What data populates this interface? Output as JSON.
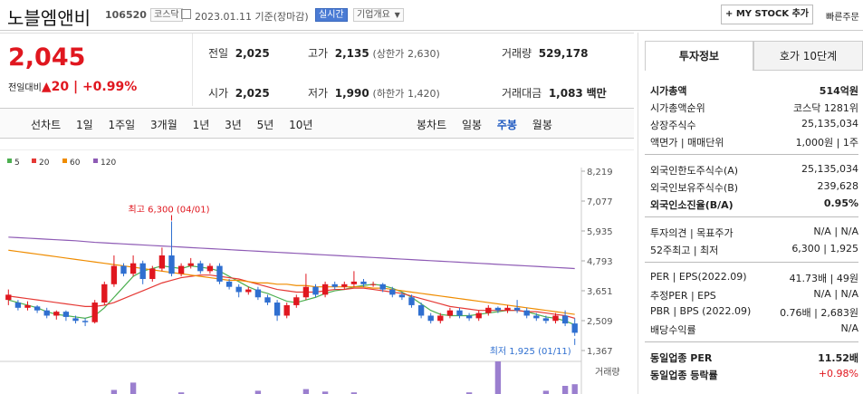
{
  "header": {
    "name": "노블엠앤비",
    "code": "106520",
    "market": "코스닥",
    "date": "2023.01.11 기준(장마감)",
    "realtime": "실시간",
    "company_overview": "기업개요",
    "mystock": "MY STOCK 추가",
    "quick_order": "빠른주문"
  },
  "quote": {
    "price": "2,045",
    "change_label": "전일대비",
    "change": "20",
    "change_pct": "+0.99%",
    "prev_label": "전일",
    "prev": "2,025",
    "high_label": "고가",
    "high": "2,135",
    "upper_label": "(상한가",
    "upper": "2,630)",
    "volume_label": "거래량",
    "volume": "529,178",
    "open_label": "시가",
    "open": "2,025",
    "low_label": "저가",
    "low": "1,990",
    "lower_label": "(하한가",
    "lower": "1,420)",
    "amount_label": "거래대금",
    "amount": "1,083",
    "amount_unit": "백만"
  },
  "periods": {
    "label": "선차트",
    "items": [
      "1일",
      "1주일",
      "3개월",
      "1년",
      "3년",
      "5년",
      "10년"
    ]
  },
  "candle_types": {
    "label": "봉차트",
    "items": [
      "일봉",
      "주봉",
      "월봉"
    ],
    "selected": "주봉"
  },
  "tabs": {
    "invest": "투자정보",
    "hoga": "호가 10단계"
  },
  "info": {
    "rows1": [
      [
        "시가총액",
        "514억원"
      ],
      [
        "시가총액순위",
        "코스닥 1281위"
      ],
      [
        "상장주식수",
        "25,135,034"
      ],
      [
        "액면가 | 매매단위",
        "1,000원 | 1주"
      ]
    ],
    "rows2": [
      [
        "외국인한도주식수(A)",
        "25,135,034"
      ],
      [
        "외국인보유주식수(B)",
        "239,628"
      ],
      [
        "외국인소진율(B/A)",
        "0.95%"
      ]
    ],
    "rows3": [
      [
        "투자의견 | 목표주가",
        "N/A | N/A"
      ],
      [
        "52주최고 | 최저",
        "6,300 | 1,925"
      ]
    ],
    "rows4": [
      [
        "PER | EPS(2022.09)",
        "41.73배 | 49원"
      ],
      [
        "추정PER | EPS",
        "N/A | N/A"
      ],
      [
        "PBR | BPS (2022.09)",
        "0.76배 | 2,683원"
      ],
      [
        "배당수익률",
        "N/A"
      ]
    ],
    "rows5": [
      [
        "동일업종 PER",
        "11.52배"
      ],
      [
        "동일업종 등락률",
        "+0.98%"
      ]
    ]
  },
  "chart_data": {
    "type": "candlestick",
    "legend": [
      {
        "name": "5",
        "color": "#4caf50"
      },
      {
        "name": "20",
        "color": "#e53935"
      },
      {
        "name": "60",
        "color": "#ef8c00"
      },
      {
        "name": "120",
        "color": "#8e5bb5"
      }
    ],
    "yticks": [
      "8,219",
      "7,077",
      "5,935",
      "4,793",
      "3,651",
      "2,509",
      "1,367"
    ],
    "ylim": [
      1367,
      8219
    ],
    "max_label": "최고 6,300 (04/01)",
    "min_label": "최저 1,925 (01/11)",
    "volume_label": "거래량",
    "candles": [
      [
        3300,
        3500,
        3700,
        3100
      ],
      [
        3200,
        3000,
        3300,
        2900
      ],
      [
        3000,
        3100,
        3250,
        2900
      ],
      [
        3050,
        2900,
        3100,
        2800
      ],
      [
        2900,
        2700,
        3000,
        2600
      ],
      [
        2700,
        2850,
        2900,
        2550
      ],
      [
        2850,
        2650,
        2900,
        2500
      ],
      [
        2600,
        2500,
        2700,
        2400
      ],
      [
        2500,
        2450,
        2600,
        2300
      ],
      [
        2450,
        3200,
        3300,
        2400
      ],
      [
        3200,
        3900,
        4000,
        3100
      ],
      [
        3900,
        4600,
        5000,
        3800
      ],
      [
        4600,
        4300,
        4700,
        4200
      ],
      [
        4300,
        4700,
        5000,
        4200
      ],
      [
        4700,
        4100,
        4800,
        3900
      ],
      [
        4100,
        4500,
        4600,
        4000
      ],
      [
        4500,
        5000,
        5300,
        4400
      ],
      [
        5000,
        4300,
        6300,
        4200
      ],
      [
        4300,
        4600,
        4700,
        4200
      ],
      [
        4600,
        4700,
        4900,
        4500
      ],
      [
        4700,
        4400,
        4800,
        4300
      ],
      [
        4400,
        4600,
        4700,
        4300
      ],
      [
        4600,
        4000,
        4700,
        3900
      ],
      [
        4000,
        3800,
        4100,
        3700
      ],
      [
        3800,
        3600,
        3900,
        3400
      ],
      [
        3600,
        3700,
        3800,
        3500
      ],
      [
        3700,
        3400,
        3800,
        3300
      ],
      [
        3400,
        3200,
        3500,
        3100
      ],
      [
        3200,
        2700,
        3300,
        2500
      ],
      [
        2700,
        3100,
        3200,
        2600
      ],
      [
        3100,
        3400,
        3500,
        3000
      ],
      [
        3400,
        3800,
        4300,
        3300
      ],
      [
        3800,
        3500,
        3900,
        3400
      ],
      [
        3500,
        3900,
        4000,
        3400
      ],
      [
        3900,
        3800,
        4000,
        3700
      ],
      [
        3800,
        3900,
        4000,
        3700
      ],
      [
        3900,
        4000,
        4400,
        3800
      ],
      [
        4000,
        3900,
        4100,
        3800
      ],
      [
        3900,
        3900,
        4000,
        3800
      ],
      [
        3900,
        3700,
        3950,
        3600
      ],
      [
        3700,
        3500,
        3800,
        3400
      ],
      [
        3500,
        3400,
        3600,
        3300
      ],
      [
        3400,
        3100,
        3500,
        3000
      ],
      [
        3100,
        2700,
        3200,
        2600
      ],
      [
        2700,
        2500,
        2800,
        2400
      ],
      [
        2500,
        2700,
        2800,
        2400
      ],
      [
        2700,
        2900,
        3000,
        2600
      ],
      [
        2900,
        2700,
        3000,
        2600
      ],
      [
        2700,
        2600,
        2800,
        2500
      ],
      [
        2600,
        2800,
        2900,
        2500
      ],
      [
        2800,
        3000,
        3100,
        2700
      ],
      [
        3000,
        2900,
        3050,
        2800
      ],
      [
        2900,
        3000,
        3100,
        2800
      ],
      [
        3000,
        2900,
        3300,
        2800
      ],
      [
        2900,
        2700,
        3000,
        2600
      ],
      [
        2700,
        2600,
        2800,
        2500
      ],
      [
        2600,
        2500,
        2700,
        2400
      ],
      [
        2500,
        2700,
        2800,
        2400
      ],
      [
        2700,
        2400,
        2900,
        2300
      ],
      [
        2400,
        2045,
        2600,
        1925
      ]
    ],
    "ma": {
      "5": [
        3300,
        3200,
        3100,
        3000,
        2850,
        2750,
        2700,
        2650,
        2600,
        2700,
        3000,
        3400,
        3800,
        4200,
        4400,
        4500,
        4600,
        4550,
        4500,
        4600,
        4550,
        4500,
        4400,
        4200,
        4000,
        3800,
        3650,
        3550,
        3400,
        3250,
        3200,
        3300,
        3400,
        3550,
        3650,
        3700,
        3800,
        3850,
        3900,
        3850,
        3750,
        3600,
        3400,
        3150,
        2900,
        2750,
        2700,
        2700,
        2700,
        2750,
        2800,
        2850,
        2900,
        2900,
        2850,
        2750,
        2650,
        2600,
        2500,
        2350
      ],
      "20": [
        3450,
        3400,
        3350,
        3300,
        3250,
        3200,
        3150,
        3100,
        3050,
        3050,
        3100,
        3200,
        3350,
        3500,
        3650,
        3800,
        3950,
        4050,
        4150,
        4200,
        4250,
        4250,
        4200,
        4150,
        4100,
        4000,
        3900,
        3800,
        3700,
        3650,
        3600,
        3600,
        3600,
        3650,
        3700,
        3700,
        3750,
        3750,
        3700,
        3650,
        3600,
        3550,
        3450,
        3350,
        3250,
        3150,
        3050,
        3000,
        2950,
        2900,
        2900,
        2900,
        2900,
        2900,
        2850,
        2850,
        2800,
        2750,
        2700,
        2600
      ],
      "60": [
        5200,
        5150,
        5100,
        5050,
        5000,
        4950,
        4900,
        4850,
        4800,
        4750,
        4700,
        4650,
        4600,
        4550,
        4500,
        4450,
        4400,
        4350,
        4300,
        4250,
        4200,
        4150,
        4100,
        4050,
        4050,
        4000,
        3950,
        3950,
        3900,
        3900,
        3850,
        3850,
        3800,
        3800,
        3800,
        3800,
        3800,
        3800,
        3750,
        3750,
        3700,
        3650,
        3600,
        3550,
        3500,
        3450,
        3400,
        3350,
        3300,
        3250,
        3200,
        3150,
        3100,
        3050,
        3000,
        2950,
        2900,
        2850,
        2800,
        2750
      ],
      "120": [
        5700,
        5680,
        5660,
        5640,
        5620,
        5600,
        5580,
        5560,
        5530,
        5500,
        5480,
        5460,
        5440,
        5420,
        5400,
        5380,
        5360,
        5340,
        5320,
        5300,
        5280,
        5260,
        5240,
        5220,
        5200,
        5180,
        5160,
        5140,
        5120,
        5100,
        5080,
        5060,
        5040,
        5020,
        5000,
        4980,
        4960,
        4940,
        4920,
        4900,
        4880,
        4860,
        4840,
        4820,
        4800,
        4780,
        4760,
        4740,
        4720,
        4700,
        4680,
        4660,
        4640,
        4620,
        4600,
        4580,
        4560,
        4540,
        4520,
        4500
      ]
    },
    "volumes": [
      0,
      0,
      0,
      0,
      0,
      0,
      0,
      0,
      0,
      0,
      0,
      5,
      0,
      14,
      0,
      0,
      0,
      0,
      2,
      0,
      0,
      0,
      0,
      0,
      0,
      0,
      4,
      0,
      0,
      0,
      0,
      6,
      0,
      3,
      0,
      0,
      2,
      0,
      0,
      0,
      0,
      0,
      0,
      0,
      0,
      0,
      0,
      0,
      2,
      0,
      0,
      40,
      0,
      0,
      0,
      0,
      4,
      0,
      10,
      12
    ]
  }
}
